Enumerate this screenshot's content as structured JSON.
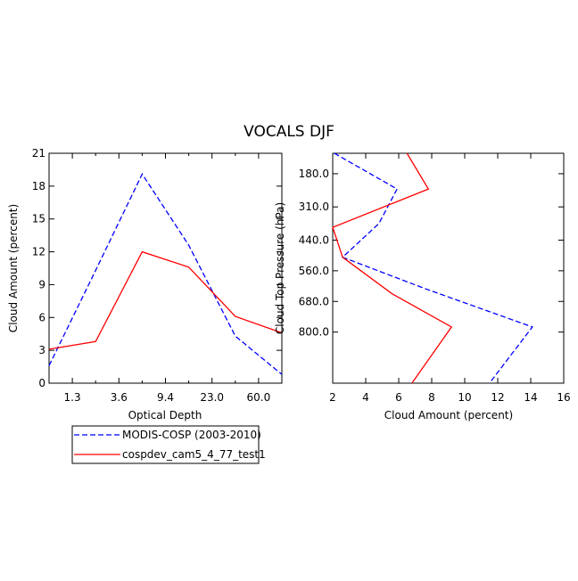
{
  "figure": {
    "title": "VOCALS DJF"
  },
  "chart_data": [
    {
      "type": "line",
      "xlabel": "Optical Depth",
      "ylabel": "Cloud Amount (percent)",
      "ylim": [
        0,
        21
      ],
      "yticks": [
        0,
        3,
        6,
        9,
        12,
        15,
        18,
        21
      ],
      "categories": [
        "1.3",
        "3.6",
        "9.4",
        "23.0",
        "60.0"
      ],
      "series": [
        {
          "name": "MODIS-COSP (2003-2010)",
          "color": "#0000ff",
          "dash": true,
          "x": [
            0,
            1,
            2,
            3,
            4,
            5
          ],
          "values": [
            1.6,
            10.3,
            19.1,
            12.6,
            4.3,
            0.8
          ]
        },
        {
          "name": "cospdev_cam5_4_77_test1",
          "color": "#ff0000",
          "dash": false,
          "x": [
            0,
            1,
            2,
            3,
            4,
            5
          ],
          "values": [
            3.1,
            3.8,
            12.0,
            10.6,
            6.1,
            4.6
          ]
        }
      ]
    },
    {
      "type": "line",
      "xlabel": "Cloud Amount (percent)",
      "ylabel": "Cloud Top Pressure (hPa)",
      "xlim": [
        2,
        16
      ],
      "xticks": [
        2,
        4,
        6,
        8,
        10,
        12,
        14,
        16
      ],
      "ylim": [
        100,
        1000
      ],
      "yticks": [
        180.0,
        310.0,
        440.0,
        560.0,
        680.0,
        800.0
      ],
      "ytick_labels": [
        "180.0",
        "310.0",
        "440.0",
        "560.0",
        "680.0",
        "800.0"
      ],
      "series": [
        {
          "name": "MODIS-COSP (2003-2010)",
          "color": "#0000ff",
          "dash": true,
          "x": [
            2.1,
            5.9,
            4.8,
            2.6,
            7.6,
            14.1,
            11.5
          ],
          "y": [
            100,
            240,
            375,
            507,
            630,
            780,
            1000
          ]
        },
        {
          "name": "cospdev_cam5_4_77_test1",
          "color": "#ff0000",
          "dash": false,
          "x": [
            6.5,
            7.8,
            2.0,
            2.6,
            5.6,
            9.2,
            6.8
          ],
          "y": [
            100,
            240,
            390,
            507,
            650,
            780,
            1000
          ]
        }
      ]
    }
  ]
}
